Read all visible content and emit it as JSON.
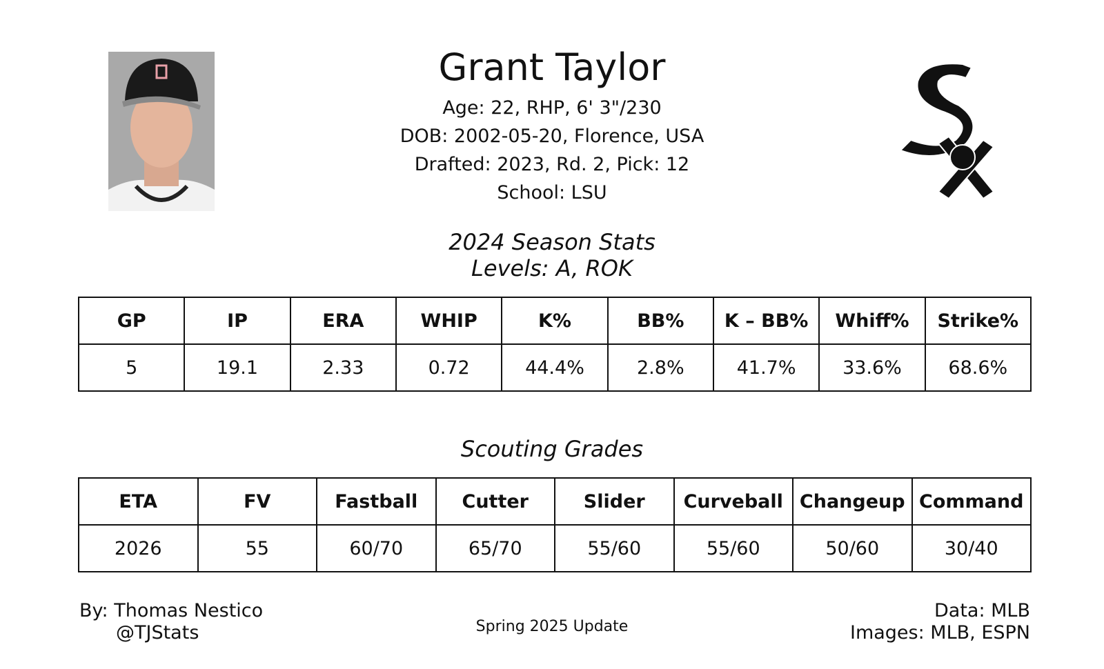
{
  "header": {
    "name": "Grant Taylor",
    "info": [
      "Age: 22, RHP, 6' 3\"/230",
      "DOB: 2002-05-20, Florence, USA",
      "Drafted: 2023, Rd. 2, Pick: 12",
      "School: LSU"
    ]
  },
  "season_stats": {
    "title": "2024 Season Stats",
    "levels": "Levels: A, ROK",
    "table": {
      "header": [
        "GP",
        "IP",
        "ERA",
        "WHIP",
        "K%",
        "BB%",
        "K – BB%",
        "Whiff%",
        "Strike%"
      ],
      "rows": [
        [
          "5",
          "19.1",
          "2.33",
          "0.72",
          "44.4%",
          "2.8%",
          "41.7%",
          "33.6%",
          "68.6%"
        ]
      ]
    }
  },
  "scouting": {
    "title": "Scouting Grades",
    "table": {
      "header": [
        "ETA",
        "FV",
        "Fastball",
        "Cutter",
        "Slider",
        "Curveball",
        "Changeup",
        "Command"
      ],
      "rows": [
        [
          "2026",
          "55",
          "60/70",
          "65/70",
          "55/60",
          "55/60",
          "50/60",
          "30/40"
        ]
      ]
    }
  },
  "footer": {
    "author": "By: Thomas Nestico",
    "handle": "@TJStats",
    "update": "Spring 2025 Update",
    "data_source": "Data: MLB",
    "image_source": "Images: MLB, ESPN"
  }
}
